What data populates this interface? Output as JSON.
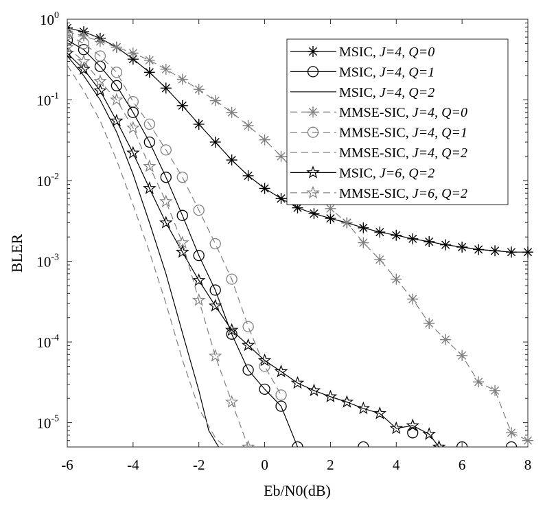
{
  "chart_data": {
    "type": "line",
    "title": "",
    "xlabel": "Eb/N0(dB)",
    "ylabel": "BLER",
    "xlim": [
      -6,
      8
    ],
    "ylim": [
      5e-06,
      1
    ],
    "yscale": "log",
    "xticks": [
      -6,
      -4,
      -2,
      0,
      2,
      4,
      6,
      8
    ],
    "xtick_labels": [
      "-6",
      "-4",
      "-2",
      "0",
      "2",
      "4",
      "6",
      "8"
    ],
    "yticks": [
      1e-05,
      0.0001,
      0.001,
      0.01,
      0.1,
      1
    ],
    "ytick_labels": [
      {
        "base": "10",
        "exp": "-5"
      },
      {
        "base": "10",
        "exp": "-4"
      },
      {
        "base": "10",
        "exp": "-3"
      },
      {
        "base": "10",
        "exp": "-2"
      },
      {
        "base": "10",
        "exp": "-1"
      },
      {
        "base": "10",
        "exp": "0"
      }
    ],
    "grid": false,
    "legend_position": "top-right",
    "series": [
      {
        "name": "MSIC, J=4, Q=0",
        "label_parts": [
          {
            "t": "MSIC, "
          },
          {
            "t": "J=4, Q=0",
            "italic": true
          }
        ],
        "color": "#000000",
        "dash": "solid",
        "marker": "asterisk",
        "x": [
          -6,
          -5.5,
          -5,
          -4.5,
          -4,
          -3.5,
          -3,
          -2.5,
          -2,
          -1.5,
          -1,
          -0.5,
          0,
          0.5,
          1,
          1.5,
          2,
          2.5,
          3,
          3.5,
          4,
          4.5,
          5,
          5.5,
          6,
          6.5,
          7,
          7.5,
          8
        ],
        "y": [
          0.78,
          0.7,
          0.58,
          0.45,
          0.32,
          0.22,
          0.14,
          0.085,
          0.05,
          0.03,
          0.018,
          0.0115,
          0.008,
          0.006,
          0.0046,
          0.0039,
          0.0034,
          0.003,
          0.0026,
          0.0023,
          0.0021,
          0.0019,
          0.00175,
          0.0016,
          0.0015,
          0.0014,
          0.00135,
          0.0013,
          0.0013
        ]
      },
      {
        "name": "MSIC, J=4, Q=1",
        "label_parts": [
          {
            "t": "MSIC, "
          },
          {
            "t": "J=4, Q=1",
            "italic": true
          }
        ],
        "color": "#000000",
        "dash": "solid",
        "marker": "circle",
        "x": [
          -6,
          -5.5,
          -5,
          -4.5,
          -4,
          -3.5,
          -3,
          -2.5,
          -2,
          -1.5,
          -1,
          -0.5,
          0,
          0.5,
          1,
          3,
          4.5,
          6,
          7.5
        ],
        "y": [
          0.55,
          0.42,
          0.26,
          0.15,
          0.07,
          0.03,
          0.011,
          0.0037,
          0.00118,
          0.00044,
          0.000125,
          4.5e-05,
          2.6e-05,
          1.6e-05,
          5e-06,
          5e-06,
          7.5e-06,
          5e-06,
          5e-06
        ],
        "x_line": [
          -6,
          -5.5,
          -5,
          -4.5,
          -4,
          -3.5,
          -3,
          -2.5,
          -2,
          -1.5,
          -1,
          -0.5,
          0,
          0.5,
          1
        ],
        "y_line": [
          0.55,
          0.42,
          0.26,
          0.15,
          0.07,
          0.03,
          0.011,
          0.0037,
          0.00118,
          0.00044,
          0.000125,
          4.5e-05,
          2.6e-05,
          1.6e-05,
          5e-06
        ]
      },
      {
        "name": "MSIC, J=4, Q=2",
        "label_parts": [
          {
            "t": "MSIC, "
          },
          {
            "t": "J=4, Q=2",
            "italic": true
          }
        ],
        "color": "#000000",
        "dash": "solid",
        "marker": "none",
        "x": [
          -6,
          -5.5,
          -5,
          -4.5,
          -4,
          -3.5,
          -3,
          -2.5,
          -2,
          -1.7,
          -1.4
        ],
        "y": [
          0.35,
          0.2,
          0.1,
          0.04,
          0.012,
          0.003,
          0.0007,
          0.00013,
          2.5e-05,
          8e-06,
          5e-06
        ]
      },
      {
        "name": "MMSE-SIC, J=4, Q=0",
        "label_parts": [
          {
            "t": "MMSE-SIC, "
          },
          {
            "t": "J=4, Q=0",
            "italic": true
          }
        ],
        "color": "#7f7f7f",
        "dash": "dashed",
        "marker": "asterisk",
        "x": [
          -6,
          -5.5,
          -5,
          -4.5,
          -4,
          -3.5,
          -3,
          -2.5,
          -2,
          -1.5,
          -1,
          -0.5,
          0,
          0.5,
          1,
          1.5,
          2,
          2.5,
          3,
          3.5,
          4,
          4.5,
          5,
          5.5,
          6,
          6.5,
          7,
          7.5,
          8
        ],
        "y": [
          0.7,
          0.62,
          0.53,
          0.45,
          0.38,
          0.31,
          0.24,
          0.18,
          0.135,
          0.098,
          0.07,
          0.048,
          0.032,
          0.02,
          0.012,
          0.0073,
          0.0045,
          0.003,
          0.0017,
          0.00105,
          0.0006,
          0.00034,
          0.00017,
          0.000107,
          6.8e-05,
          3.2e-05,
          2.5e-05,
          7.5e-06,
          6e-06
        ]
      },
      {
        "name": "MMSE-SIC, J=4, Q=1",
        "label_parts": [
          {
            "t": "MMSE-SIC, "
          },
          {
            "t": "J=4, Q=1",
            "italic": true
          }
        ],
        "color": "#7f7f7f",
        "dash": "dashed",
        "marker": "circle",
        "x": [
          -6,
          -5.5,
          -5,
          -4.5,
          -4,
          -3.5,
          -3,
          -2.5,
          -2,
          -1.5,
          -1,
          -0.5,
          0,
          0.5
        ],
        "y": [
          0.65,
          0.5,
          0.35,
          0.22,
          0.095,
          0.05,
          0.024,
          0.011,
          0.0043,
          0.00165,
          0.0006,
          0.000155,
          5e-05,
          2.2e-05
        ]
      },
      {
        "name": "MMSE-SIC, J=4, Q=2",
        "label_parts": [
          {
            "t": "MMSE-SIC, "
          },
          {
            "t": "J=4, Q=2",
            "italic": true
          }
        ],
        "color": "#7f7f7f",
        "dash": "dashed",
        "marker": "none",
        "x": [
          -6,
          -5.5,
          -5,
          -4.5,
          -4,
          -3.5,
          -3,
          -2.5,
          -2,
          -1.5,
          -1.2
        ],
        "y": [
          0.27,
          0.13,
          0.055,
          0.018,
          0.005,
          0.0013,
          0.0003,
          6e-05,
          1.5e-05,
          6.5e-06,
          5e-06
        ]
      },
      {
        "name": "MSIC, J=6, Q=2",
        "label_parts": [
          {
            "t": "MSIC, "
          },
          {
            "t": "J=6, Q=2",
            "italic": true
          }
        ],
        "color": "#000000",
        "dash": "solid",
        "marker": "star",
        "x": [
          -6,
          -5.5,
          -5,
          -4.5,
          -4,
          -3.5,
          -3,
          -2.5,
          -2,
          -1.5,
          -1,
          -0.5,
          0,
          0.5,
          1,
          1.5,
          2,
          2.5,
          3,
          3.5,
          4,
          4.5,
          5,
          5.3
        ],
        "y": [
          0.38,
          0.24,
          0.13,
          0.055,
          0.022,
          0.008,
          0.003,
          0.0013,
          0.00058,
          0.00028,
          0.00014,
          9.1e-05,
          5.9e-05,
          4.3e-05,
          3.1e-05,
          2.5e-05,
          2.1e-05,
          1.8e-05,
          1.5e-05,
          1.3e-05,
          8.5e-06,
          9.2e-06,
          7.2e-06,
          5e-06
        ]
      },
      {
        "name": "MMSE-SIC, J=6, Q=2",
        "label_parts": [
          {
            "t": "MMSE-SIC, "
          },
          {
            "t": "J=6, Q=2",
            "italic": true
          }
        ],
        "color": "#7f7f7f",
        "dash": "dashed",
        "marker": "star",
        "x": [
          -6,
          -5.5,
          -5,
          -4.5,
          -4,
          -3.5,
          -3,
          -2.5,
          -2,
          -1.5,
          -1,
          -0.5
        ],
        "y": [
          0.45,
          0.3,
          0.17,
          0.1,
          0.045,
          0.015,
          0.0055,
          0.0017,
          0.00033,
          6.7e-05,
          1.8e-05,
          5e-06
        ]
      }
    ]
  }
}
